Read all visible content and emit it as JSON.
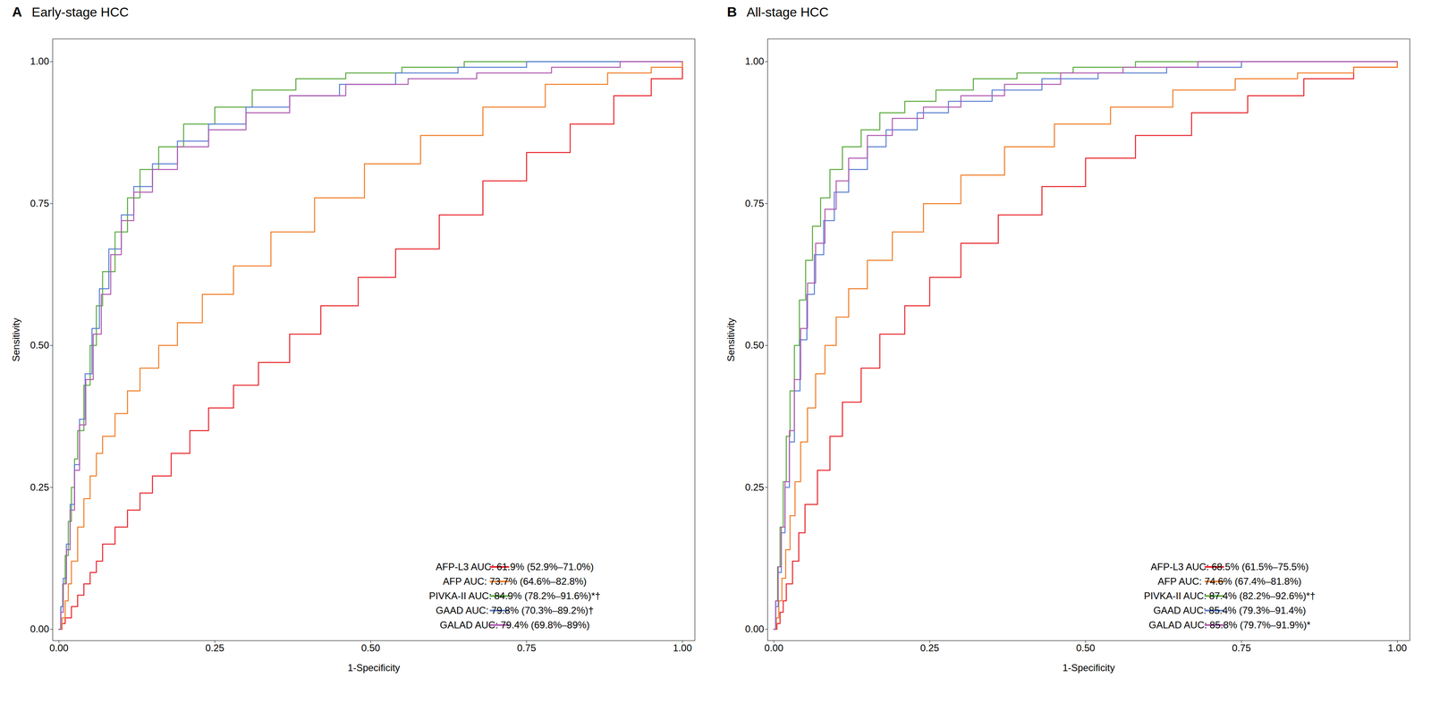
{
  "chart_data": [
    {
      "type": "step",
      "title": "Early-stage HCC",
      "annotations": [
        "A"
      ],
      "xlabel": "1-Specificity",
      "ylabel": "Sensitivity",
      "xlim": [
        -0.01,
        1.02
      ],
      "ylim": [
        -0.02,
        1.04
      ],
      "xticks": [
        {
          "value": 0,
          "label": "0.00"
        },
        {
          "value": 0.25,
          "label": "0.25"
        },
        {
          "value": 0.5,
          "label": "0.50"
        },
        {
          "value": 0.75,
          "label": "0.75"
        },
        {
          "value": 1,
          "label": "1.00"
        }
      ],
      "yticks": [
        {
          "value": 0,
          "label": "0.00"
        },
        {
          "value": 0.25,
          "label": "0.25"
        },
        {
          "value": 0.5,
          "label": "0.50"
        },
        {
          "value": 0.75,
          "label": "0.75"
        },
        {
          "value": 1,
          "label": "1.00"
        }
      ],
      "grid": false,
      "legend": "lower right",
      "series": [
        {
          "name": "AFP-L3 AUC: 61.9% (52.9%–71.0%)",
          "color": "#e8242a",
          "x": [
            0,
            0.005,
            0.01,
            0.02,
            0.03,
            0.04,
            0.05,
            0.06,
            0.07,
            0.09,
            0.11,
            0.13,
            0.15,
            0.18,
            0.21,
            0.24,
            0.28,
            0.32,
            0.37,
            0.42,
            0.48,
            0.54,
            0.61,
            0.68,
            0.75,
            0.82,
            0.89,
            0.95,
            1.0
          ],
          "values": [
            0,
            0.01,
            0.02,
            0.04,
            0.06,
            0.08,
            0.1,
            0.12,
            0.15,
            0.18,
            0.21,
            0.24,
            0.27,
            0.31,
            0.35,
            0.39,
            0.43,
            0.47,
            0.52,
            0.57,
            0.62,
            0.67,
            0.73,
            0.79,
            0.84,
            0.89,
            0.94,
            0.97,
            1.0
          ]
        },
        {
          "name": "AFP AUC: 73.7% (64.6%–82.8%)",
          "color": "#f07c25",
          "x": [
            0,
            0.005,
            0.01,
            0.015,
            0.02,
            0.03,
            0.04,
            0.05,
            0.06,
            0.07,
            0.09,
            0.11,
            0.13,
            0.16,
            0.19,
            0.23,
            0.28,
            0.34,
            0.41,
            0.49,
            0.58,
            0.68,
            0.78,
            0.88,
            0.95,
            1.0
          ],
          "values": [
            0,
            0.02,
            0.05,
            0.08,
            0.12,
            0.18,
            0.23,
            0.27,
            0.31,
            0.34,
            0.38,
            0.42,
            0.46,
            0.5,
            0.54,
            0.59,
            0.64,
            0.7,
            0.76,
            0.82,
            0.87,
            0.92,
            0.96,
            0.98,
            0.99,
            1.0
          ]
        },
        {
          "name": "PIVKA-II AUC: 84.9% (78.2%–91.6%)*†",
          "color": "#5aaa3c",
          "x": [
            0,
            0.003,
            0.006,
            0.01,
            0.015,
            0.02,
            0.025,
            0.03,
            0.04,
            0.05,
            0.06,
            0.07,
            0.09,
            0.11,
            0.13,
            0.16,
            0.2,
            0.25,
            0.31,
            0.38,
            0.46,
            0.55,
            0.65,
            0.76,
            0.86,
            0.95,
            1.0
          ],
          "values": [
            0,
            0.04,
            0.08,
            0.13,
            0.19,
            0.25,
            0.3,
            0.35,
            0.43,
            0.5,
            0.57,
            0.63,
            0.7,
            0.76,
            0.81,
            0.85,
            0.89,
            0.92,
            0.95,
            0.97,
            0.98,
            0.99,
            1.0,
            1.0,
            1.0,
            1.0,
            1.0
          ]
        },
        {
          "name": "GAAD AUC: 79.8% (70.3%–89.2%)†",
          "color": "#5b7fd4",
          "x": [
            0,
            0.003,
            0.007,
            0.012,
            0.018,
            0.025,
            0.033,
            0.042,
            0.053,
            0.065,
            0.08,
            0.1,
            0.12,
            0.15,
            0.19,
            0.24,
            0.3,
            0.37,
            0.45,
            0.54,
            0.64,
            0.75,
            0.86,
            0.95,
            1.0
          ],
          "values": [
            0,
            0.04,
            0.09,
            0.15,
            0.22,
            0.29,
            0.37,
            0.45,
            0.53,
            0.6,
            0.67,
            0.73,
            0.78,
            0.82,
            0.86,
            0.89,
            0.92,
            0.94,
            0.96,
            0.98,
            0.99,
            1.0,
            1.0,
            1.0,
            1.0
          ]
        },
        {
          "name": "GALAD AUC: 79.4% (69.8%–89%)",
          "color": "#b05ab0",
          "x": [
            0,
            0.003,
            0.007,
            0.012,
            0.018,
            0.025,
            0.033,
            0.043,
            0.055,
            0.068,
            0.083,
            0.1,
            0.12,
            0.15,
            0.19,
            0.24,
            0.3,
            0.37,
            0.46,
            0.56,
            0.67,
            0.79,
            0.9,
            0.97,
            1.0
          ],
          "values": [
            0,
            0.03,
            0.08,
            0.14,
            0.21,
            0.28,
            0.36,
            0.44,
            0.52,
            0.59,
            0.66,
            0.72,
            0.77,
            0.81,
            0.85,
            0.88,
            0.91,
            0.94,
            0.96,
            0.97,
            0.98,
            0.99,
            1.0,
            1.0,
            1.0
          ]
        }
      ]
    },
    {
      "type": "step",
      "title": "All-stage HCC",
      "annotations": [
        "B"
      ],
      "xlabel": "1-Specificity",
      "ylabel": "Sensitivity",
      "xlim": [
        -0.01,
        1.02
      ],
      "ylim": [
        -0.02,
        1.04
      ],
      "xticks": [
        {
          "value": 0,
          "label": "0.00"
        },
        {
          "value": 0.25,
          "label": "0.25"
        },
        {
          "value": 0.5,
          "label": "0.50"
        },
        {
          "value": 0.75,
          "label": "0.75"
        },
        {
          "value": 1,
          "label": "1.00"
        }
      ],
      "yticks": [
        {
          "value": 0,
          "label": "0.00"
        },
        {
          "value": 0.25,
          "label": "0.25"
        },
        {
          "value": 0.5,
          "label": "0.50"
        },
        {
          "value": 0.75,
          "label": "0.75"
        },
        {
          "value": 1,
          "label": "1.00"
        }
      ],
      "grid": false,
      "legend": "lower right",
      "series": [
        {
          "name": "AFP-L3 AUC: 68.5% (61.5%–75.5%)",
          "color": "#e8242a",
          "x": [
            0,
            0.005,
            0.01,
            0.015,
            0.02,
            0.03,
            0.04,
            0.05,
            0.07,
            0.09,
            0.11,
            0.14,
            0.17,
            0.21,
            0.25,
            0.3,
            0.36,
            0.43,
            0.5,
            0.58,
            0.67,
            0.76,
            0.85,
            0.93,
            1.0
          ],
          "values": [
            0,
            0.01,
            0.03,
            0.05,
            0.08,
            0.12,
            0.17,
            0.22,
            0.28,
            0.34,
            0.4,
            0.46,
            0.52,
            0.57,
            0.62,
            0.68,
            0.73,
            0.78,
            0.83,
            0.87,
            0.91,
            0.94,
            0.97,
            0.99,
            1.0
          ]
        },
        {
          "name": "AFP AUC: 74.6% (67.4%–81.8%)",
          "color": "#f07c25",
          "x": [
            0,
            0.004,
            0.008,
            0.013,
            0.019,
            0.026,
            0.034,
            0.043,
            0.054,
            0.067,
            0.082,
            0.1,
            0.12,
            0.15,
            0.19,
            0.24,
            0.3,
            0.37,
            0.45,
            0.54,
            0.64,
            0.74,
            0.84,
            0.93,
            1.0
          ],
          "values": [
            0,
            0.02,
            0.05,
            0.09,
            0.14,
            0.2,
            0.26,
            0.33,
            0.39,
            0.45,
            0.5,
            0.55,
            0.6,
            0.65,
            0.7,
            0.75,
            0.8,
            0.85,
            0.89,
            0.92,
            0.95,
            0.97,
            0.98,
            0.99,
            1.0
          ]
        },
        {
          "name": "PIVKA-II AUC: 87.4% (82.2%–92.6%)*†",
          "color": "#5aaa3c",
          "x": [
            0,
            0.003,
            0.006,
            0.01,
            0.015,
            0.02,
            0.026,
            0.033,
            0.041,
            0.051,
            0.062,
            0.075,
            0.09,
            0.11,
            0.14,
            0.17,
            0.21,
            0.26,
            0.32,
            0.39,
            0.48,
            0.58,
            0.69,
            0.81,
            0.92,
            1.0
          ],
          "values": [
            0,
            0.05,
            0.11,
            0.18,
            0.26,
            0.34,
            0.42,
            0.5,
            0.58,
            0.65,
            0.71,
            0.76,
            0.81,
            0.85,
            0.88,
            0.91,
            0.93,
            0.95,
            0.97,
            0.98,
            0.99,
            1.0,
            1.0,
            1.0,
            1.0,
            1.0
          ]
        },
        {
          "name": "GAAD AUC: 85.4% (79.3%–91.4%)",
          "color": "#5b7fd4",
          "x": [
            0,
            0.003,
            0.007,
            0.012,
            0.018,
            0.025,
            0.033,
            0.042,
            0.053,
            0.065,
            0.08,
            0.097,
            0.12,
            0.15,
            0.18,
            0.23,
            0.28,
            0.35,
            0.43,
            0.52,
            0.63,
            0.75,
            0.87,
            0.96,
            1.0
          ],
          "values": [
            0,
            0.04,
            0.1,
            0.17,
            0.25,
            0.33,
            0.42,
            0.51,
            0.59,
            0.66,
            0.72,
            0.77,
            0.81,
            0.85,
            0.88,
            0.91,
            0.93,
            0.95,
            0.97,
            0.98,
            0.99,
            1.0,
            1.0,
            1.0,
            1.0
          ]
        },
        {
          "name": "GALAD AUC: 85.8% (79.7%–91.9%)*",
          "color": "#b05ab0",
          "x": [
            0,
            0.003,
            0.007,
            0.012,
            0.018,
            0.025,
            0.033,
            0.043,
            0.054,
            0.067,
            0.082,
            0.1,
            0.12,
            0.15,
            0.19,
            0.24,
            0.3,
            0.37,
            0.46,
            0.56,
            0.68,
            0.8,
            0.92,
            0.99,
            1.0
          ],
          "values": [
            0,
            0.05,
            0.11,
            0.18,
            0.26,
            0.35,
            0.44,
            0.53,
            0.61,
            0.68,
            0.74,
            0.79,
            0.83,
            0.87,
            0.9,
            0.92,
            0.94,
            0.96,
            0.98,
            0.99,
            1.0,
            1.0,
            1.0,
            1.0,
            1.0
          ]
        }
      ]
    }
  ]
}
